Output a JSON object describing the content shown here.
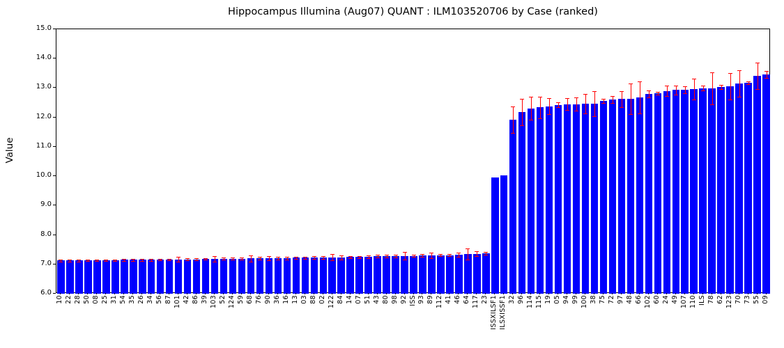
{
  "chart_data": {
    "type": "bar",
    "title": "Hippocampus Illumina (Aug07) QUANT : ILM103520706 by Case (ranked)",
    "xlabel": "",
    "ylabel": "Value",
    "ylim": [
      6.0,
      15.0
    ],
    "yticks": [
      6.0,
      7.0,
      8.0,
      9.0,
      10.0,
      11.0,
      12.0,
      13.0,
      14.0,
      15.0
    ],
    "grid": false,
    "legend": "none",
    "bar_color": "#0000ff",
    "error_color": "#ff0000",
    "axis_color": "#000000",
    "background_color": "#ffffff",
    "categories": [
      "10",
      "22",
      "28",
      "50",
      "08",
      "25",
      "31",
      "54",
      "35",
      "26",
      "34",
      "56",
      "87",
      "101",
      "42",
      "86",
      "39",
      "103",
      "52",
      "124",
      "59",
      "68",
      "76",
      "90",
      "36",
      "16",
      "13",
      "03",
      "88",
      "02",
      "122",
      "84",
      "14",
      "07",
      "51",
      "43",
      "80",
      "98",
      "92",
      "ISS",
      "93",
      "89",
      "112",
      "41",
      "46",
      "64",
      "117",
      "23",
      "ISSXILSF1",
      "ILSXISSF1",
      "32",
      "96",
      "114",
      "115",
      "19",
      "05",
      "94",
      "99",
      "100",
      "38",
      "75",
      "72",
      "97",
      "48",
      "66",
      "102",
      "60",
      "24",
      "49",
      "107",
      "110",
      "ILS",
      "78",
      "62",
      "123",
      "70",
      "73",
      "55",
      "09"
    ],
    "values": [
      7.13,
      7.13,
      7.13,
      7.14,
      7.14,
      7.14,
      7.14,
      7.15,
      7.15,
      7.15,
      7.15,
      7.16,
      7.16,
      7.17,
      7.17,
      7.17,
      7.18,
      7.18,
      7.19,
      7.19,
      7.19,
      7.2,
      7.2,
      7.21,
      7.21,
      7.21,
      7.22,
      7.22,
      7.23,
      7.23,
      7.24,
      7.24,
      7.25,
      7.25,
      7.26,
      7.27,
      7.27,
      7.28,
      7.29,
      7.29,
      7.3,
      7.3,
      7.31,
      7.31,
      7.33,
      7.35,
      7.36,
      7.37,
      9.95,
      10.02,
      11.92,
      12.18,
      12.31,
      12.34,
      12.38,
      12.43,
      12.45,
      12.45,
      12.46,
      12.47,
      12.55,
      12.61,
      12.62,
      12.63,
      12.68,
      12.8,
      12.83,
      12.9,
      12.93,
      12.94,
      12.96,
      12.99,
      12.99,
      13.03,
      13.05,
      13.16,
      13.18,
      13.42,
      13.46
    ],
    "errors": [
      0.03,
      0.03,
      0.03,
      0.03,
      0.03,
      0.03,
      0.03,
      0.03,
      0.03,
      0.03,
      0.03,
      0.03,
      0.03,
      0.08,
      0.04,
      0.03,
      0.03,
      0.09,
      0.04,
      0.04,
      0.04,
      0.1,
      0.05,
      0.08,
      0.04,
      0.04,
      0.04,
      0.04,
      0.05,
      0.04,
      0.1,
      0.07,
      0.04,
      0.04,
      0.05,
      0.05,
      0.05,
      0.05,
      0.13,
      0.04,
      0.05,
      0.09,
      0.04,
      0.04,
      0.07,
      0.18,
      0.09,
      0.04,
      0.0,
      0.0,
      0.45,
      0.45,
      0.4,
      0.37,
      0.27,
      0.09,
      0.2,
      0.22,
      0.33,
      0.43,
      0.07,
      0.12,
      0.28,
      0.52,
      0.55,
      0.12,
      0.05,
      0.18,
      0.15,
      0.12,
      0.35,
      0.08,
      0.55,
      0.07,
      0.45,
      0.45,
      0.04,
      0.45,
      0.12
    ]
  }
}
